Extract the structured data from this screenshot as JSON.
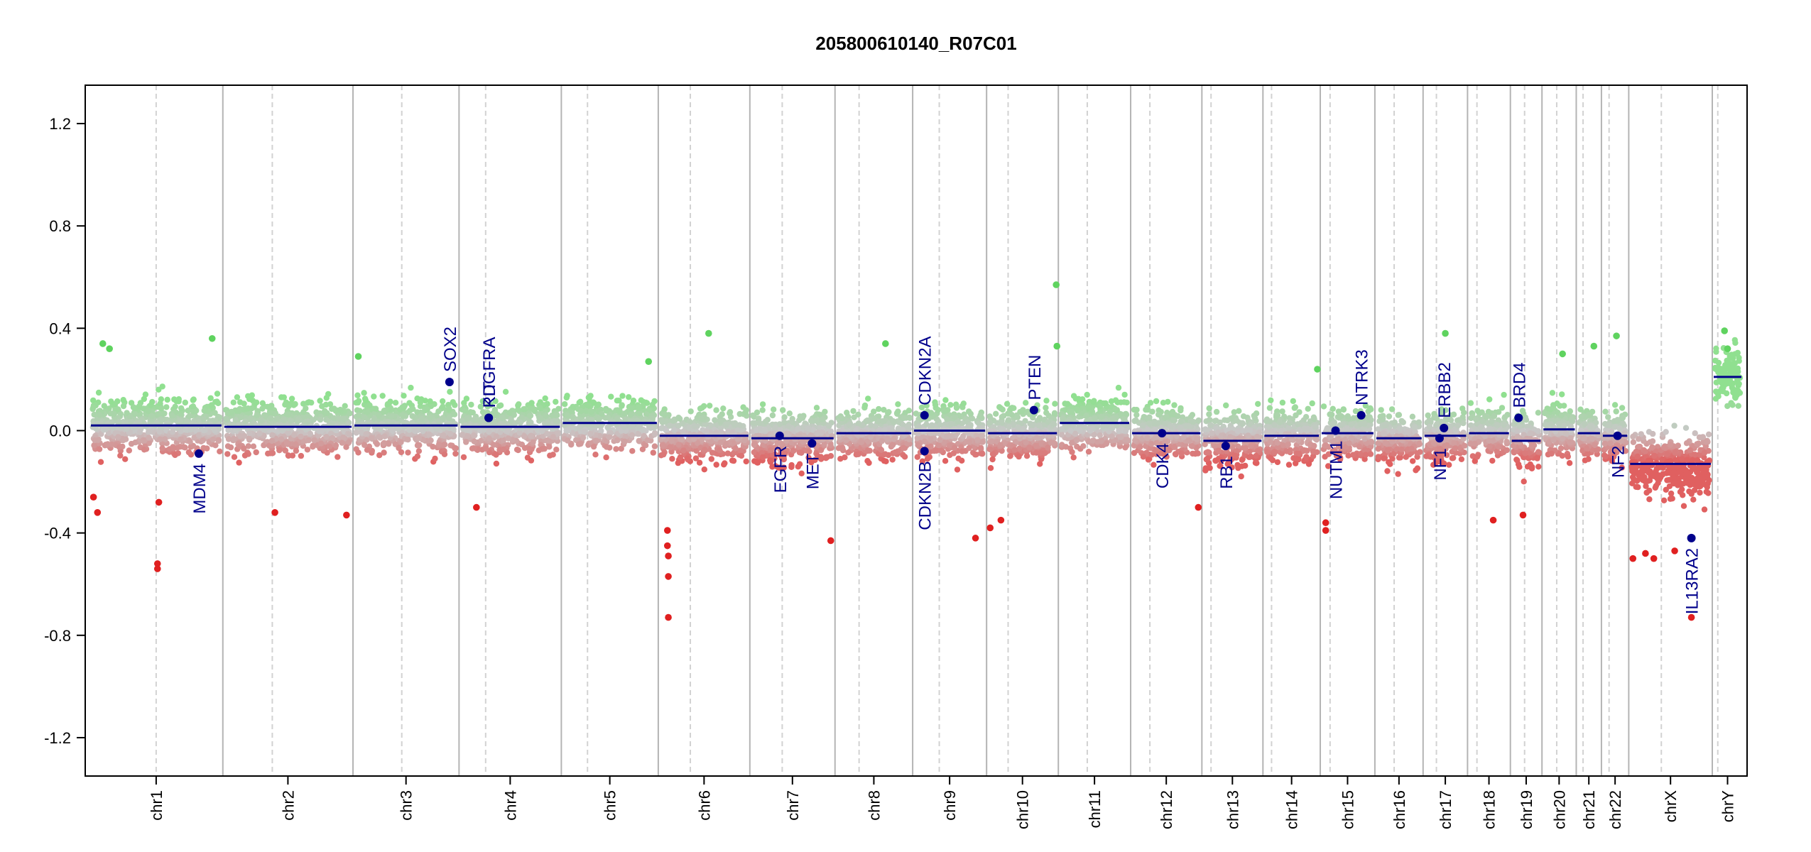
{
  "chart_data": {
    "type": "scatter",
    "title": "205800610140_R07C01",
    "xlabel": "",
    "ylabel": "",
    "ylim": [
      -1.35,
      1.35
    ],
    "yticks": [
      -1.2,
      -0.8,
      -0.4,
      0.0,
      0.4,
      0.8,
      1.2
    ],
    "ytick_labels": [
      "-1.2",
      "-0.8",
      "-0.4",
      "0.0",
      "0.4",
      "0.8",
      "1.2"
    ],
    "grid": false,
    "colors": {
      "gain": "#90e090",
      "neutral": "#c8c8c8",
      "loss": "#e06060",
      "segment": "#00008b",
      "gene": "#00008b",
      "chrom_boundary": "#b4b4b4",
      "centromere": "#d2d2d2"
    },
    "chromosomes": [
      {
        "name": "chr1",
        "size": 249,
        "centromere": 0.5,
        "segment": 0.02
      },
      {
        "name": "chr2",
        "size": 243,
        "centromere": 0.38,
        "segment": 0.015
      },
      {
        "name": "chr3",
        "size": 198,
        "centromere": 0.46,
        "segment": 0.02
      },
      {
        "name": "chr4",
        "size": 191,
        "centromere": 0.26,
        "segment": 0.015
      },
      {
        "name": "chr5",
        "size": 181,
        "centromere": 0.27,
        "segment": 0.03
      },
      {
        "name": "chr6",
        "size": 171,
        "centromere": 0.35,
        "segment": -0.02
      },
      {
        "name": "chr7",
        "size": 159,
        "centromere": 0.38,
        "segment": -0.03
      },
      {
        "name": "chr8",
        "size": 145,
        "centromere": 0.31,
        "segment": -0.01
      },
      {
        "name": "chr9",
        "size": 138,
        "centromere": 0.36,
        "segment": 0.0
      },
      {
        "name": "chr10",
        "size": 134,
        "centromere": 0.3,
        "segment": -0.01
      },
      {
        "name": "chr11",
        "size": 135,
        "centromere": 0.4,
        "segment": 0.03
      },
      {
        "name": "chr12",
        "size": 133,
        "centromere": 0.27,
        "segment": -0.01
      },
      {
        "name": "chr13",
        "size": 114,
        "centromere": 0.15,
        "segment": -0.04
      },
      {
        "name": "chr14",
        "size": 107,
        "centromere": 0.15,
        "segment": -0.02
      },
      {
        "name": "chr15",
        "size": 102,
        "centromere": 0.18,
        "segment": -0.01
      },
      {
        "name": "chr16",
        "size": 90,
        "centromere": 0.4,
        "segment": -0.03
      },
      {
        "name": "chr17",
        "size": 83,
        "centromere": 0.3,
        "segment": -0.02
      },
      {
        "name": "chr18",
        "size": 80,
        "centromere": 0.22,
        "segment": -0.01
      },
      {
        "name": "chr19",
        "size": 59,
        "centromere": 0.45,
        "segment": -0.04
      },
      {
        "name": "chr20",
        "size": 64,
        "centromere": 0.43,
        "segment": 0.005
      },
      {
        "name": "chr21",
        "size": 47,
        "centromere": 0.27,
        "segment": -0.01
      },
      {
        "name": "chr22",
        "size": 51,
        "centromere": 0.28,
        "segment": -0.02
      },
      {
        "name": "chrX",
        "size": 156,
        "centromere": 0.39,
        "segment": -0.13
      },
      {
        "name": "chrY",
        "size": 57,
        "centromere": 0.18,
        "segment": 0.21
      }
    ],
    "genes": [
      {
        "name": "MDM4",
        "chrom": "chr1",
        "pos": 0.82,
        "value": -0.09,
        "label_side": "below"
      },
      {
        "name": "SOX2",
        "chrom": "chr3",
        "pos": 0.91,
        "value": 0.19,
        "label_side": "above"
      },
      {
        "name": "PDGFRA",
        "chrom": "chr4",
        "pos": 0.29,
        "value": 0.05,
        "label_side": "above"
      },
      {
        "name": "KIT",
        "chrom": "chr4",
        "pos": 0.29,
        "value": 0.05,
        "label_side": "above"
      },
      {
        "name": "EGFR",
        "chrom": "chr7",
        "pos": 0.35,
        "value": -0.02,
        "label_side": "below"
      },
      {
        "name": "MET",
        "chrom": "chr7",
        "pos": 0.73,
        "value": -0.05,
        "label_side": "below"
      },
      {
        "name": "CDKN2A",
        "chrom": "chr9",
        "pos": 0.16,
        "value": 0.06,
        "label_side": "above"
      },
      {
        "name": "CDKN2B",
        "chrom": "chr9",
        "pos": 0.16,
        "value": -0.08,
        "label_side": "below"
      },
      {
        "name": "PTEN",
        "chrom": "chr10",
        "pos": 0.66,
        "value": 0.08,
        "label_side": "above"
      },
      {
        "name": "CDK4",
        "chrom": "chr12",
        "pos": 0.44,
        "value": -0.01,
        "label_side": "below"
      },
      {
        "name": "RB1",
        "chrom": "chr13",
        "pos": 0.39,
        "value": -0.06,
        "label_side": "below"
      },
      {
        "name": "NUTM1",
        "chrom": "chr15",
        "pos": 0.28,
        "value": 0.0,
        "label_side": "below"
      },
      {
        "name": "NTRK3",
        "chrom": "chr15",
        "pos": 0.75,
        "value": 0.06,
        "label_side": "above"
      },
      {
        "name": "NF1",
        "chrom": "chr17",
        "pos": 0.37,
        "value": -0.03,
        "label_side": "below"
      },
      {
        "name": "ERBB2",
        "chrom": "chr17",
        "pos": 0.47,
        "value": 0.01,
        "label_side": "above"
      },
      {
        "name": "BRD4",
        "chrom": "chr19",
        "pos": 0.26,
        "value": 0.05,
        "label_side": "above"
      },
      {
        "name": "NF2",
        "chrom": "chr22",
        "pos": 0.59,
        "value": -0.02,
        "label_side": "below"
      },
      {
        "name": "IL13RA2",
        "chrom": "chrX",
        "pos": 0.75,
        "value": -0.42,
        "label_side": "below"
      }
    ],
    "outliers": [
      {
        "chrom": "chr1",
        "pos": 0.92,
        "value": 0.36
      },
      {
        "chrom": "chr1",
        "pos": 0.1,
        "value": 0.34
      },
      {
        "chrom": "chr1",
        "pos": 0.15,
        "value": 0.32
      },
      {
        "chrom": "chr1",
        "pos": 0.03,
        "value": -0.26
      },
      {
        "chrom": "chr1",
        "pos": 0.06,
        "value": -0.32
      },
      {
        "chrom": "chr1",
        "pos": 0.51,
        "value": -0.52
      },
      {
        "chrom": "chr1",
        "pos": 0.51,
        "value": -0.54
      },
      {
        "chrom": "chr1",
        "pos": 0.52,
        "value": -0.28
      },
      {
        "chrom": "chr2",
        "pos": 0.4,
        "value": -0.32
      },
      {
        "chrom": "chr2",
        "pos": 0.95,
        "value": -0.33
      },
      {
        "chrom": "chr3",
        "pos": 0.05,
        "value": 0.29
      },
      {
        "chrom": "chr4",
        "pos": 0.17,
        "value": -0.3
      },
      {
        "chrom": "chr5",
        "pos": 0.9,
        "value": 0.27
      },
      {
        "chrom": "chr6",
        "pos": 0.1,
        "value": -0.39
      },
      {
        "chrom": "chr6",
        "pos": 0.1,
        "value": -0.45
      },
      {
        "chrom": "chr6",
        "pos": 0.11,
        "value": -0.49
      },
      {
        "chrom": "chr6",
        "pos": 0.11,
        "value": -0.57
      },
      {
        "chrom": "chr6",
        "pos": 0.11,
        "value": -0.73
      },
      {
        "chrom": "chr6",
        "pos": 0.55,
        "value": 0.38
      },
      {
        "chrom": "chr7",
        "pos": 0.95,
        "value": -0.43
      },
      {
        "chrom": "chr8",
        "pos": 0.65,
        "value": 0.34
      },
      {
        "chrom": "chr9",
        "pos": 0.85,
        "value": -0.42
      },
      {
        "chrom": "chr10",
        "pos": 0.05,
        "value": -0.38
      },
      {
        "chrom": "chr10",
        "pos": 0.2,
        "value": -0.35
      },
      {
        "chrom": "chr10",
        "pos": 0.97,
        "value": 0.57
      },
      {
        "chrom": "chr10",
        "pos": 0.98,
        "value": 0.33
      },
      {
        "chrom": "chr12",
        "pos": 0.95,
        "value": -0.3
      },
      {
        "chrom": "chr14",
        "pos": 0.95,
        "value": 0.24
      },
      {
        "chrom": "chr15",
        "pos": 0.1,
        "value": -0.36
      },
      {
        "chrom": "chr15",
        "pos": 0.1,
        "value": -0.39
      },
      {
        "chrom": "chr17",
        "pos": 0.5,
        "value": 0.38
      },
      {
        "chrom": "chr18",
        "pos": 0.6,
        "value": -0.35
      },
      {
        "chrom": "chr19",
        "pos": 0.4,
        "value": -0.33
      },
      {
        "chrom": "chr20",
        "pos": 0.6,
        "value": 0.3
      },
      {
        "chrom": "chr21",
        "pos": 0.7,
        "value": 0.33
      },
      {
        "chrom": "chr22",
        "pos": 0.55,
        "value": 0.37
      },
      {
        "chrom": "chrX",
        "pos": 0.05,
        "value": -0.5
      },
      {
        "chrom": "chrX",
        "pos": 0.2,
        "value": -0.48
      },
      {
        "chrom": "chrX",
        "pos": 0.3,
        "value": -0.5
      },
      {
        "chrom": "chrX",
        "pos": 0.55,
        "value": -0.47
      },
      {
        "chrom": "chrX",
        "pos": 0.75,
        "value": -0.73
      },
      {
        "chrom": "chrY",
        "pos": 0.4,
        "value": 0.39
      },
      {
        "chrom": "chrY",
        "pos": 0.5,
        "value": 0.32
      }
    ]
  }
}
